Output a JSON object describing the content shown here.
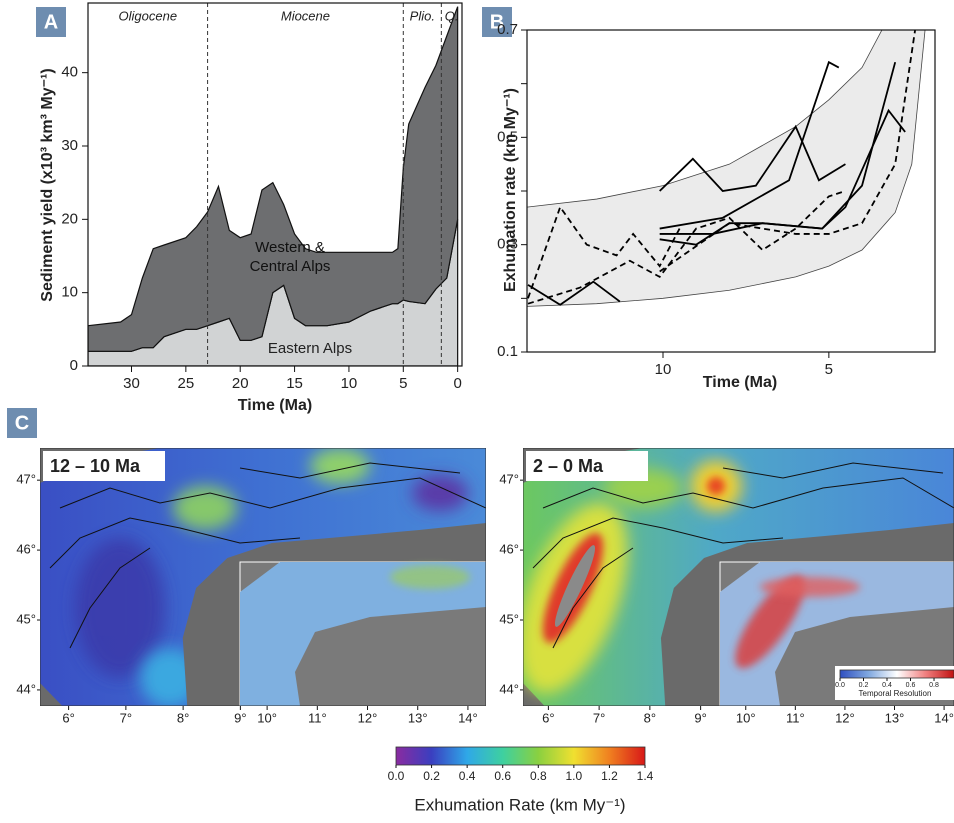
{
  "chart_data": [
    {
      "type": "stacked_area",
      "panel_label": "A",
      "xlabel": "Time (Ma)",
      "ylabel": "Sediment  yield (x10³ km³ My⁻¹)",
      "x": [
        34,
        31,
        30,
        29,
        28,
        27,
        25,
        24,
        23,
        22,
        21,
        20,
        19,
        18,
        17,
        16,
        15,
        14,
        13,
        12,
        10,
        8,
        6,
        5.5,
        5,
        4.5,
        3,
        2,
        1,
        0
      ],
      "series": [
        {
          "name": "Eastern Alps",
          "color": "#d1d3d4",
          "values": [
            2,
            2,
            2,
            2.5,
            2.5,
            4,
            5,
            5,
            5.5,
            6,
            6.5,
            3.5,
            3.5,
            4,
            10,
            11,
            6.5,
            5.5,
            5.5,
            5.5,
            6,
            7.5,
            8.5,
            8.5,
            9,
            8.8,
            8.5,
            10.5,
            12,
            20
          ]
        },
        {
          "name": "Western & Central Alps",
          "color": "#6d6e70",
          "values": [
            3.5,
            4,
            5,
            9.5,
            13.5,
            12.5,
            12.5,
            14,
            15.5,
            18.5,
            12,
            14,
            14.5,
            20,
            15,
            11,
            11.5,
            10.5,
            10,
            10,
            9.5,
            8,
            7,
            7.5,
            18,
            24.2,
            29.5,
            30.5,
            33,
            29
          ]
        }
      ],
      "xlim": [
        34,
        -0.4
      ],
      "ylim": [
        0,
        49.5
      ],
      "xticks": [
        30,
        25,
        20,
        15,
        10,
        5,
        0
      ],
      "yticks": [
        0,
        10,
        20,
        30,
        40
      ],
      "epochs": [
        "Oligocene",
        "Miocene",
        "Plio.",
        "Q."
      ],
      "epoch_boundaries": [
        23,
        5,
        1.5
      ]
    },
    {
      "type": "line",
      "panel_label": "B",
      "xlabel": "Time (Ma)",
      "ylabel": "Exhumation rate (km My⁻¹)",
      "xlim": [
        14.1,
        1.8
      ],
      "ylim": [
        0.1,
        0.7
      ],
      "xticks": [
        10,
        5
      ],
      "yticks": [
        0.1,
        0.3,
        0.5,
        0.7
      ],
      "minor_yticks": [
        0.2,
        0.4,
        0.6
      ],
      "envelope": {
        "color": "#ebebeb",
        "upper": {
          "x": [
            14.1,
            12,
            10,
            8,
            6,
            5,
            4,
            3.4
          ],
          "values": [
            0.37,
            0.385,
            0.41,
            0.45,
            0.52,
            0.57,
            0.63,
            0.7
          ]
        },
        "lower": {
          "x": [
            14.1,
            12,
            10,
            8,
            6,
            5,
            4,
            3,
            2.5,
            2.1
          ],
          "values": [
            0.185,
            0.19,
            0.2,
            0.215,
            0.24,
            0.26,
            0.29,
            0.36,
            0.45,
            0.7
          ]
        }
      },
      "series": [
        {
          "color": "#000",
          "dash": false,
          "x": [
            14.07,
            13.1,
            12.1,
            11.3
          ],
          "values": [
            0.225,
            0.188,
            0.231,
            0.194
          ]
        },
        {
          "color": "#000",
          "dash": false,
          "x": [
            10.1,
            9.1,
            8.2,
            7.2,
            6.0,
            5.3,
            4.5
          ],
          "values": [
            0.4,
            0.46,
            0.4,
            0.41,
            0.52,
            0.42,
            0.45
          ]
        },
        {
          "color": "#000",
          "dash": false,
          "x": [
            10.1,
            8.2,
            6.2,
            5.0,
            4.7
          ],
          "values": [
            0.33,
            0.35,
            0.42,
            0.64,
            0.63
          ]
        },
        {
          "color": "#000",
          "dash": false,
          "x": [
            10.1,
            9.0,
            8.0,
            7.0,
            5.2,
            4.5,
            3.2,
            2.7
          ],
          "values": [
            0.31,
            0.3,
            0.34,
            0.34,
            0.33,
            0.37,
            0.55,
            0.51
          ]
        },
        {
          "color": "#000",
          "dash": false,
          "x": [
            10.1,
            8.5,
            7.0,
            5.2,
            4.0,
            3.0
          ],
          "values": [
            0.32,
            0.32,
            0.34,
            0.33,
            0.41,
            0.64
          ]
        },
        {
          "color": "#000",
          "dash": true,
          "x": [
            14.07,
            13.1,
            12.3,
            11.4,
            10.9,
            10.1,
            9.5
          ],
          "values": [
            0.2,
            0.37,
            0.3,
            0.28,
            0.32,
            0.26,
            0.33
          ]
        },
        {
          "color": "#000",
          "dash": true,
          "x": [
            14.07,
            12.5,
            11.0,
            10.1,
            9.0,
            8.0,
            7.0,
            6.0,
            5.0,
            4.5
          ],
          "values": [
            0.19,
            0.22,
            0.27,
            0.24,
            0.33,
            0.35,
            0.29,
            0.33,
            0.39,
            0.4
          ]
        },
        {
          "color": "#000",
          "dash": true,
          "x": [
            10.1,
            8.0,
            6.0,
            5.0,
            4.0,
            3.0,
            2.4
          ],
          "values": [
            0.25,
            0.34,
            0.32,
            0.32,
            0.34,
            0.45,
            0.7
          ]
        }
      ]
    },
    {
      "type": "map",
      "panel_label": "C",
      "label": "12 – 10 Ma",
      "latlim": [
        43.77,
        47.46
      ],
      "lat_ticks": [
        {
          "value": 44,
          "label": "44°"
        },
        {
          "value": 45,
          "label": "45°"
        },
        {
          "value": 46,
          "label": "46°"
        },
        {
          "value": 47,
          "label": "47°"
        }
      ],
      "lonlim": [
        5.5,
        9.5
      ],
      "lon_ticks": [
        {
          "value": 6,
          "label": "6°"
        },
        {
          "value": 7,
          "label": "7°"
        },
        {
          "value": 8,
          "label": "8°"
        },
        {
          "value": 9,
          "label": "9°"
        }
      ],
      "inset_lonlim": [
        9.4,
        14.4
      ],
      "inset_lon_ticks": [
        {
          "value": 10,
          "label": "10°"
        },
        {
          "value": 11,
          "label": "11°"
        },
        {
          "value": 12,
          "label": "12°"
        },
        {
          "value": 13,
          "label": "13°"
        },
        {
          "value": 14,
          "label": "14°"
        }
      ]
    },
    {
      "type": "map",
      "label": "2 – 0 Ma",
      "latlim": [
        43.77,
        47.46
      ],
      "lat_ticks": [
        {
          "value": 44,
          "label": "44°"
        },
        {
          "value": 45,
          "label": "45°"
        },
        {
          "value": 46,
          "label": "46°"
        },
        {
          "value": 47,
          "label": "47°"
        }
      ],
      "lonlim": [
        5.5,
        9.5
      ],
      "lon_ticks": [
        {
          "value": 6,
          "label": "6°"
        },
        {
          "value": 7,
          "label": "7°"
        },
        {
          "value": 8,
          "label": "8°"
        },
        {
          "value": 9,
          "label": "9°"
        }
      ],
      "inset_lonlim": [
        9.4,
        14.2
      ],
      "inset_lon_ticks": [
        {
          "value": 10,
          "label": "10°"
        },
        {
          "value": 11,
          "label": "11°"
        },
        {
          "value": 12,
          "label": "12°"
        },
        {
          "value": 13,
          "label": "13°"
        },
        {
          "value": 14,
          "label": "14°"
        }
      ]
    },
    {
      "type": "colorbar",
      "label": "Exhumation Rate (km My⁻¹)",
      "lim": [
        0,
        1.4
      ],
      "ticks": [
        {
          "value": 0,
          "label": "0.0"
        },
        0.2,
        0.4,
        0.6,
        0.8,
        {
          "value": 1,
          "label": "1.0"
        },
        1.2,
        1.4
      ],
      "colors": [
        "#8a2ba0",
        "#3a3fc0",
        "#2fa8e8",
        "#3ed0a0",
        "#8ad040",
        "#f0e030",
        "#f08020",
        "#d81818"
      ]
    },
    {
      "type": "colorbar",
      "label": "Temporal Resolution",
      "lim": [
        0,
        0.97
      ],
      "ticks": [
        {
          "value": 0,
          "label": "0.0"
        },
        0.2,
        0.4,
        0.6,
        0.8
      ],
      "colors": [
        "#2f4fc0",
        "#80a8e0",
        "#ffffff",
        "#f08080",
        "#c01010"
      ]
    }
  ]
}
